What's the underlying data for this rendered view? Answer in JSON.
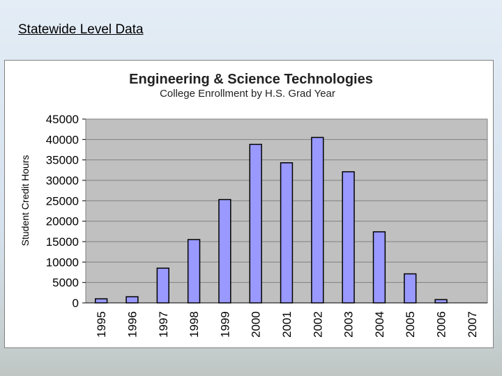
{
  "slide": {
    "title": "Statewide Level Data"
  },
  "colors": {
    "plot_background": "#c0c0c0",
    "bar_fill": "#9999ff",
    "bar_stroke": "#000000",
    "grid": "#808080"
  },
  "chart_data": {
    "type": "bar",
    "title": "Engineering & Science Technologies",
    "subtitle": "College Enrollment by H.S. Grad Year",
    "xlabel": "",
    "ylabel": "Student Credit Hours",
    "categories": [
      "1995",
      "1996",
      "1997",
      "1998",
      "1999",
      "2000",
      "2001",
      "2002",
      "2003",
      "2004",
      "2005",
      "2006",
      "2007"
    ],
    "values": [
      1000,
      1500,
      8500,
      15500,
      25300,
      38800,
      34300,
      40500,
      32100,
      17400,
      7100,
      800,
      0
    ],
    "ylim": [
      0,
      45000
    ],
    "yticks": [
      "0",
      "5000",
      "10000",
      "15000",
      "20000",
      "25000",
      "30000",
      "35000",
      "40000",
      "45000"
    ],
    "grid": true,
    "legend": "none"
  }
}
